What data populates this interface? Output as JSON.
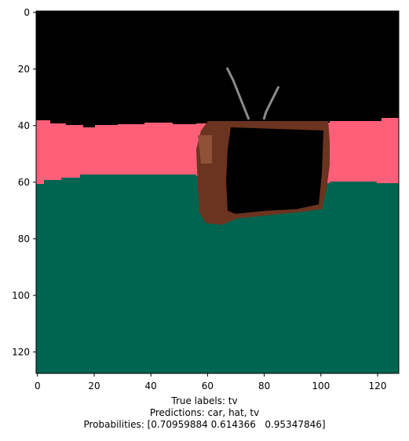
{
  "plot": {
    "x_ticks": [
      "0",
      "20",
      "40",
      "60",
      "80",
      "100",
      "120"
    ],
    "y_ticks": [
      "0",
      "20",
      "40",
      "60",
      "80",
      "100",
      "120"
    ],
    "colors": {
      "sky": "#000000",
      "band": "#ff5f78",
      "ground": "#006550",
      "tv_body": "#6b3420",
      "tv_highlight": "#8e5238",
      "antenna": "#8c8c8c"
    }
  },
  "caption": {
    "true_labels": "True labels: tv",
    "predictions": "Predictions: car, hat, tv",
    "probabilities": "Probabilities: [0.70959884 0.614366   0.95347846]"
  }
}
